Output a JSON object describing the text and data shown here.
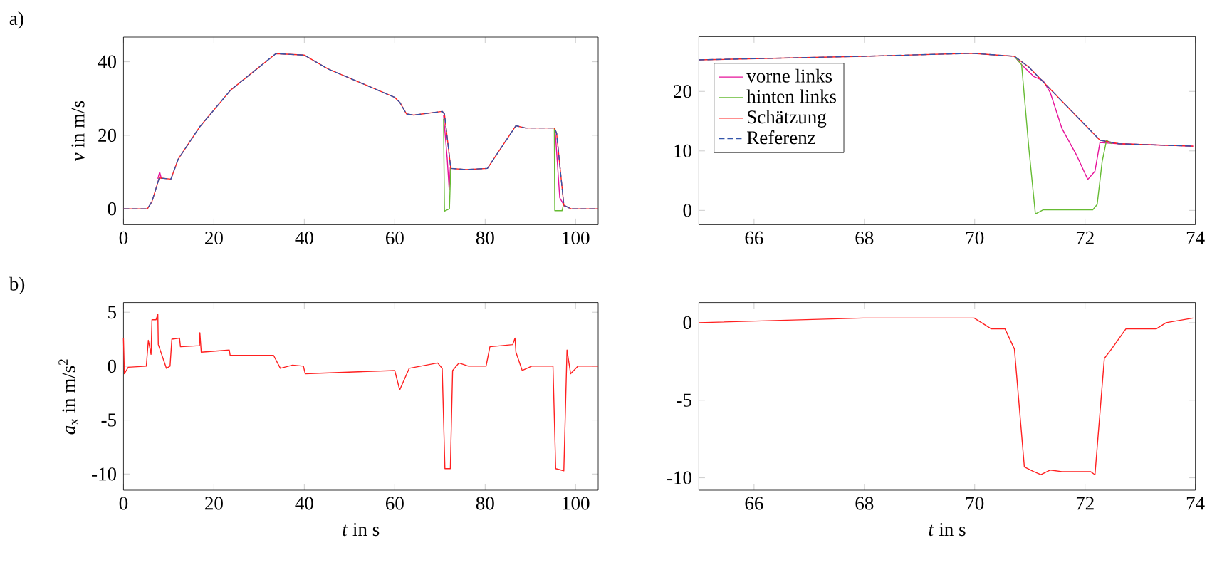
{
  "chart_data": [
    {
      "type": "line",
      "ylabel": "*v* in m/s",
      "annotations": [
        "a)"
      ],
      "xlim": [
        0,
        105
      ],
      "ylim": [
        -4.3,
        46.7
      ],
      "xticks": [
        0,
        20,
        40,
        60,
        80,
        100
      ],
      "yticks": [
        0,
        20,
        40
      ],
      "legend": false,
      "series": [
        {
          "color": "#e6139a",
          "x": [
            7.6,
            8.0,
            8.4,
            40,
            70.8,
            71.6,
            72.05,
            72.3,
            85,
            95.5,
            96.5,
            97.2,
            97.6
          ],
          "values": [
            8.2,
            10,
            8.2,
            null,
            25.5,
            13.8,
            5.2,
            11.4,
            null,
            21,
            3,
            1.5,
            0.5
          ]
        },
        {
          "color": "#66bb33",
          "x": [
            70.8,
            71.0,
            72.1,
            72.4,
            85,
            95.3,
            95.4,
            97.0,
            97.3
          ],
          "values": [
            24.5,
            -0.6,
            0,
            11.5,
            null,
            22,
            -0.5,
            -0.5,
            1
          ]
        },
        {
          "color": "#ff2020",
          "x": [
            0,
            5.3,
            6.3,
            7.9,
            10.5,
            12.1,
            16.8,
            23.7,
            33.7,
            40,
            45.3,
            52.6,
            60,
            61.1,
            62.6,
            64.2,
            70.5,
            71,
            72.4,
            75.8,
            80.5,
            86.8,
            88.9,
            95.3,
            95.8,
            97.4,
            99,
            105
          ],
          "values": [
            0,
            0,
            2,
            8.4,
            8.1,
            13.5,
            22.2,
            32.3,
            42.2,
            41.8,
            38,
            34.2,
            30.3,
            29,
            25.8,
            25.5,
            26.5,
            25.8,
            11,
            10.7,
            11,
            22.6,
            22,
            22,
            20.6,
            1,
            0,
            0
          ]
        },
        {
          "color": "#3355aa",
          "line_style": "dashed",
          "x": [
            0,
            5.3,
            6.3,
            7.9,
            10.5,
            12.1,
            16.8,
            23.7,
            33.7,
            40,
            45.3,
            52.6,
            60,
            61.1,
            62.6,
            64.2,
            70.5,
            71,
            72.4,
            75.8,
            80.5,
            86.8,
            88.9,
            95.3,
            95.8,
            97.4,
            99,
            105
          ],
          "values": [
            0,
            0,
            2,
            8.4,
            8.1,
            13.5,
            22.2,
            32.3,
            42.2,
            41.8,
            38,
            34.2,
            30.3,
            29,
            25.8,
            25.5,
            26.5,
            25.8,
            11,
            10.7,
            11,
            22.6,
            22,
            22,
            20.6,
            1,
            0,
            0
          ]
        }
      ]
    },
    {
      "type": "line",
      "xlim": [
        65,
        74
      ],
      "ylim": [
        -2.4,
        29.2
      ],
      "xticks": [
        66,
        68,
        70,
        72,
        74
      ],
      "yticks": [
        0,
        10,
        20
      ],
      "legend": "top left",
      "series": [
        {
          "name": "vorne links",
          "color": "#e6139a",
          "x": [
            70.72,
            70.85,
            71.07,
            71.24,
            71.37,
            71.58,
            71.84,
            72.05,
            72.18,
            72.27,
            72.61,
            73.96
          ],
          "values": [
            25.9,
            24.5,
            22.5,
            21.8,
            19.8,
            13.8,
            9.4,
            5.2,
            6.6,
            11.4,
            11.2,
            10.8
          ]
        },
        {
          "name": "hinten links",
          "color": "#66bb33",
          "x": [
            70.72,
            70.85,
            70.98,
            71.1,
            71.24,
            72.14,
            72.22,
            72.31,
            72.39,
            72.48
          ],
          "values": [
            25.9,
            24.5,
            10.6,
            -0.6,
            0.1,
            0.1,
            1,
            8.2,
            11.8,
            11.2
          ]
        },
        {
          "name": "Schätzung",
          "color": "#ff2020",
          "x": [
            65,
            67.98,
            69.95,
            70.72,
            70.98,
            72.27,
            72.61,
            73.96
          ],
          "values": [
            25.3,
            25.9,
            26.4,
            25.9,
            24.1,
            11.8,
            11.2,
            10.8
          ]
        },
        {
          "name": "Referenz",
          "color": "#3355aa",
          "line_style": "dashed",
          "x": [
            65,
            67.98,
            69.95,
            70.72,
            70.98,
            72.27,
            72.61,
            73.96
          ],
          "values": [
            25.3,
            25.9,
            26.4,
            25.9,
            24.1,
            11.8,
            11.2,
            10.8
          ]
        }
      ]
    },
    {
      "type": "line",
      "xlabel": "*t* in s",
      "ylabel": "*a*$_{x}$ in m/s$^{2}$",
      "annotations": [
        "b)"
      ],
      "xlim": [
        0,
        105
      ],
      "ylim": [
        -11.5,
        5.9
      ],
      "xticks": [
        0,
        20,
        40,
        60,
        80,
        100
      ],
      "yticks": [
        -10,
        -5,
        0,
        5
      ],
      "legend": false,
      "series": [
        {
          "color": "#ff2020",
          "x": [
            0,
            0.2,
            1.05,
            5.05,
            5.5,
            6.1,
            6.3,
            7.2,
            7.6,
            7.7,
            9.5,
            10.3,
            10.7,
            12.4,
            12.6,
            16.8,
            16.9,
            17.2,
            23.4,
            23.6,
            33.2,
            34.7,
            37.4,
            39.8,
            40.2,
            60,
            61.1,
            63.2,
            69.5,
            70.5,
            71.1,
            72.3,
            72.8,
            74.2,
            76.3,
            80.2,
            81.05,
            86.1,
            86.6,
            86.8,
            88.2,
            90.3,
            95,
            95.6,
            97.4,
            98.1,
            98.9,
            100.5,
            105
          ],
          "values": [
            2.6,
            -0.7,
            -0.1,
            0,
            2.4,
            1.1,
            4.3,
            4.3,
            4.8,
            2,
            -0.2,
            0,
            2.5,
            2.6,
            1.8,
            1.9,
            3.1,
            1.3,
            1.5,
            1,
            1,
            -0.2,
            0.1,
            0,
            -0.7,
            -0.4,
            -2.2,
            -0.2,
            0.3,
            -0.2,
            -9.5,
            -9.5,
            -0.4,
            0.3,
            0,
            0,
            1.8,
            2,
            2.6,
            1.3,
            -0.4,
            0,
            0,
            -9.5,
            -9.7,
            1.5,
            -0.7,
            0,
            0
          ]
        }
      ]
    },
    {
      "type": "line",
      "xlabel": "*t* in s",
      "xlim": [
        65,
        74
      ],
      "ylim": [
        -10.8,
        1.3
      ],
      "xticks": [
        66,
        68,
        70,
        72,
        74
      ],
      "yticks": [
        -10,
        -5,
        0
      ],
      "legend": false,
      "series": [
        {
          "color": "#ff2020",
          "x": [
            65,
            67.98,
            69.99,
            70.17,
            70.3,
            70.55,
            70.72,
            70.9,
            71.07,
            71.2,
            71.37,
            71.58,
            72.1,
            72.18,
            72.35,
            72.48,
            72.74,
            73.29,
            73.47,
            73.96
          ],
          "values": [
            0,
            0.3,
            0.3,
            -0.1,
            -0.4,
            -0.4,
            -1.7,
            -9.3,
            -9.6,
            -9.8,
            -9.5,
            -9.6,
            -9.6,
            -9.8,
            -2.3,
            -1.7,
            -0.4,
            -0.4,
            0,
            0.3
          ]
        }
      ]
    }
  ]
}
